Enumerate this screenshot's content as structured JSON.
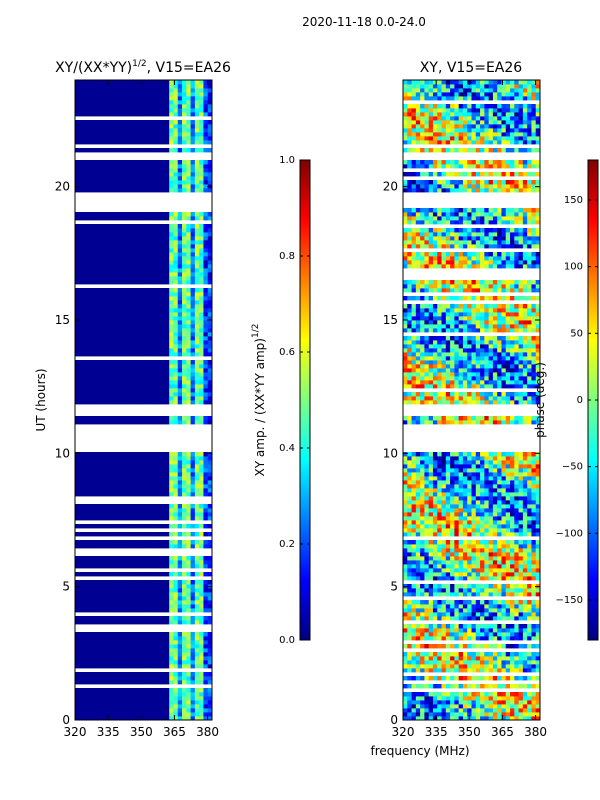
{
  "figure": {
    "suptitle": "2020-11-18 0.0-24.0",
    "shared_xlabel": "frequency (MHz)"
  },
  "colors": {
    "jet_stops": [
      "#00007f",
      "#0000ff",
      "#007fff",
      "#00ffff",
      "#7fff7f",
      "#ffff00",
      "#ff7f00",
      "#ff0000",
      "#7f0000"
    ],
    "masked": "#ffffff"
  },
  "chart_data": [
    {
      "type": "heatmap",
      "id": "amp",
      "title_main": "XY/(XX*YY)",
      "title_exp": "1/2",
      "title_suffix": ", V15=EA26",
      "xlabel": "",
      "ylabel": "UT (hours)",
      "xlim": [
        320,
        382
      ],
      "ylim": [
        0,
        24
      ],
      "xticks": [
        320,
        335,
        350,
        365,
        380
      ],
      "yticks": [
        0,
        5,
        10,
        15,
        20
      ],
      "grid": false,
      "gap_hours": [
        [
          10.1,
          11.0
        ],
        [
          11.4,
          11.8
        ],
        [
          19.2,
          19.7
        ],
        [
          20.9,
          21.2
        ]
      ],
      "colorbar": {
        "label_main": "XY amp. / (XX*YY amp)",
        "label_exp": "1/2",
        "range": [
          0.0,
          1.0
        ],
        "ticks": [
          "0.0",
          "0.2",
          "0.4",
          "0.6",
          "0.8",
          "1.0"
        ]
      }
    },
    {
      "type": "heatmap",
      "id": "phase",
      "title_main": "XY, V15=EA26",
      "xlabel": "frequency (MHz)",
      "ylabel": "",
      "xlim": [
        320,
        382
      ],
      "ylim": [
        0,
        24
      ],
      "xticks": [
        320,
        335,
        350,
        365,
        380
      ],
      "yticks": [
        0,
        5,
        10,
        15,
        20
      ],
      "grid": false,
      "gap_hours": [
        [
          10.1,
          11.0
        ],
        [
          11.4,
          11.8
        ],
        [
          19.2,
          19.7
        ],
        [
          20.9,
          21.2
        ]
      ],
      "colorbar": {
        "label_main": "phase (deg.)",
        "range": [
          -180,
          180
        ],
        "ticks": [
          "−150",
          "−100",
          "−50",
          "0",
          "50",
          "100",
          "150"
        ]
      }
    }
  ]
}
